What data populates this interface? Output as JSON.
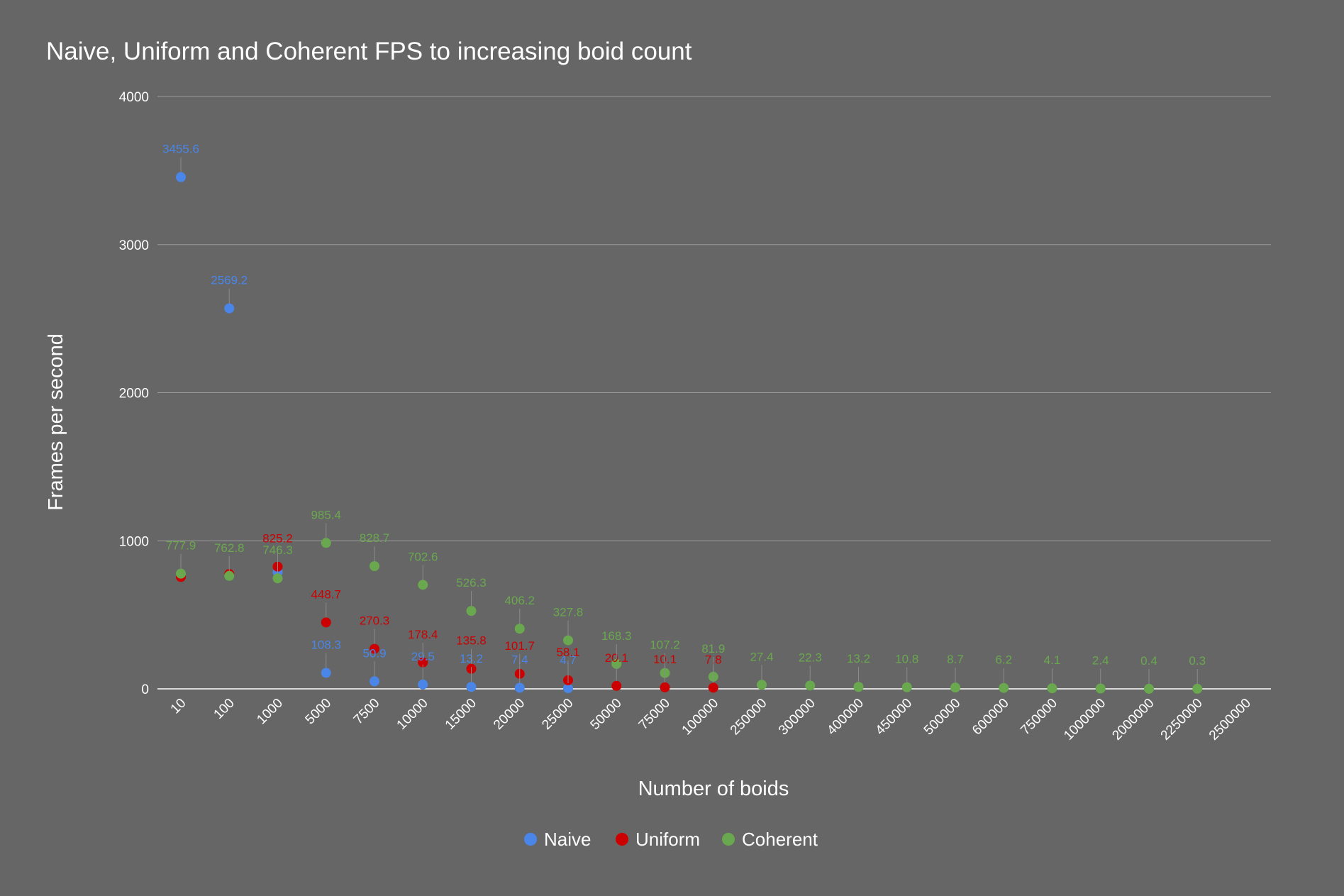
{
  "chart_data": {
    "type": "scatter",
    "title": "Naive, Uniform and Coherent FPS to increasing boid count",
    "xlabel": "Number of boids",
    "ylabel": "Frames per second",
    "ylim": [
      0,
      4000
    ],
    "yticks": [
      "0",
      "1000",
      "2000",
      "3000",
      "4000"
    ],
    "grid": true,
    "legend_position": "bottom",
    "categories": [
      "10",
      "100",
      "1000",
      "5000",
      "7500",
      "10000",
      "15000",
      "20000",
      "25000",
      "50000",
      "75000",
      "100000",
      "250000",
      "300000",
      "400000",
      "450000",
      "500000",
      "600000",
      "750000",
      "1000000",
      "2000000",
      "2250000",
      "2500000"
    ],
    "series": [
      {
        "name": "Naive",
        "color": "#4a86e8",
        "values": [
          3455.6,
          2569.2,
          787.8,
          108.3,
          50.9,
          29.5,
          13.2,
          7.4,
          4.7,
          null,
          null,
          null,
          null,
          null,
          null,
          null,
          null,
          null,
          null,
          null,
          null,
          null,
          null
        ],
        "labels": [
          "3455.6",
          "2569.2",
          "",
          "108.3",
          "50.9",
          "29.5",
          "13.2",
          "7.4",
          "4.7",
          "",
          "",
          "",
          "",
          "",
          "",
          "",
          "",
          "",
          "",
          "",
          "",
          "",
          ""
        ]
      },
      {
        "name": "Uniform",
        "color": "#cc0000",
        "values": [
          755.4,
          775.2,
          825.2,
          448.7,
          270.3,
          178.4,
          135.8,
          101.7,
          58.1,
          20.1,
          10.1,
          7.8,
          null,
          null,
          null,
          null,
          null,
          null,
          null,
          null,
          null,
          null,
          null
        ],
        "labels": [
          "",
          "",
          "825.2",
          "448.7",
          "270.3",
          "178.4",
          "135.8",
          "101.7",
          "58.1",
          "20.1",
          "10.1",
          "7.8",
          "",
          "",
          "",
          "",
          "",
          "",
          "",
          "",
          "",
          "",
          ""
        ]
      },
      {
        "name": "Coherent",
        "color": "#6aa84f",
        "values": [
          777.9,
          762.8,
          746.3,
          985.4,
          828.7,
          702.6,
          526.3,
          406.2,
          327.8,
          168.3,
          107.2,
          81.9,
          27.4,
          22.3,
          13.2,
          10.8,
          8.7,
          6.2,
          4.1,
          2.4,
          0.4,
          0.3,
          null
        ],
        "labels": [
          "777.9",
          "762.8",
          "746.3",
          "985.4",
          "828.7",
          "702.6",
          "526.3",
          "406.2",
          "327.8",
          "168.3",
          "107.2",
          "81.9",
          "27.4",
          "22.3",
          "13.2",
          "10.8",
          "8.7",
          "6.2",
          "4.1",
          "2.4",
          "0.4",
          "0.3",
          ""
        ]
      }
    ]
  }
}
